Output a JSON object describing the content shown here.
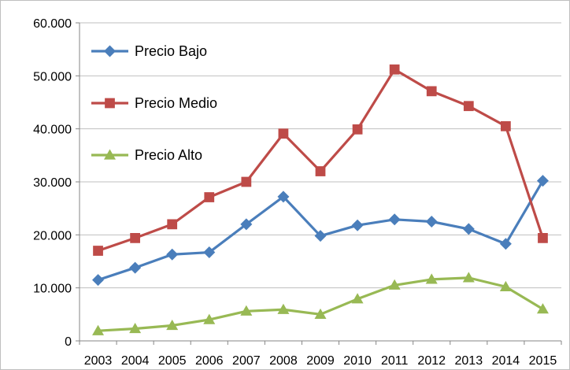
{
  "chart_data": {
    "type": "line",
    "x": [
      "2003",
      "2004",
      "2005",
      "2006",
      "2007",
      "2008",
      "2009",
      "2010",
      "2011",
      "2012",
      "2013",
      "2014",
      "2015"
    ],
    "ylim": [
      0,
      60000
    ],
    "yticks": [
      0,
      10000,
      20000,
      30000,
      40000,
      50000,
      60000
    ],
    "ytick_labels": [
      "0",
      "10.000",
      "20.000",
      "30.000",
      "40.000",
      "50.000",
      "60.000"
    ],
    "grid": true,
    "legend_position": "top-left inside plot",
    "series": [
      {
        "name": "Precio Bajo",
        "color": "#4a7ebb",
        "marker": "diamond",
        "values": [
          11500,
          13800,
          16300,
          16700,
          22000,
          27200,
          19800,
          21800,
          22900,
          22500,
          21100,
          18300,
          30200
        ]
      },
      {
        "name": "Precio Medio",
        "color": "#be4b48",
        "marker": "square",
        "values": [
          17000,
          19400,
          22000,
          27100,
          30000,
          39100,
          32000,
          39900,
          51200,
          47100,
          44300,
          40500,
          19400
        ]
      },
      {
        "name": "Precio Alto",
        "color": "#98b954",
        "marker": "triangle",
        "values": [
          1900,
          2300,
          2900,
          4000,
          5600,
          5900,
          5000,
          7900,
          10500,
          11600,
          11900,
          10200,
          6000
        ]
      }
    ]
  }
}
